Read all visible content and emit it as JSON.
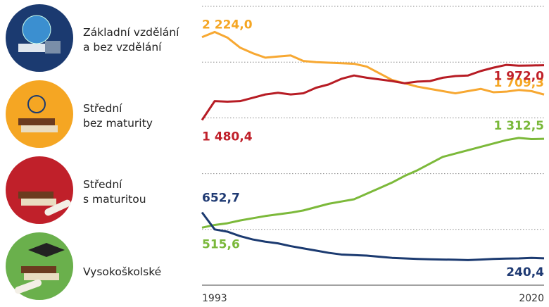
{
  "chart_data": {
    "type": "line",
    "x": [
      1993,
      1994,
      1995,
      1996,
      1997,
      1998,
      1999,
      2000,
      2001,
      2002,
      2003,
      2004,
      2005,
      2006,
      2007,
      2008,
      2009,
      2010,
      2011,
      2012,
      2013,
      2014,
      2015,
      2016,
      2017,
      2018,
      2019,
      2020
    ],
    "xlim": [
      1993,
      2020
    ],
    "xticks": [
      1993,
      2020
    ],
    "ylim": [
      0,
      2500
    ],
    "yticks": [
      0,
      500,
      1000,
      1500,
      2000,
      2500
    ],
    "grid": true,
    "series": [
      {
        "name": "Základní vzdělání\na bez vzdělání",
        "color": "#f7a832",
        "values": [
          2224.0,
          2270,
          2220,
          2130,
          2080,
          2040,
          2050,
          2060,
          2010,
          2000,
          1995,
          1990,
          1985,
          1960,
          1900,
          1840,
          1810,
          1780,
          1760,
          1740,
          1720,
          1740,
          1760,
          1730,
          1735,
          1750,
          1740,
          1709.3
        ],
        "value_labels": [
          "2 224,0",
          null,
          null,
          null,
          null,
          null,
          null,
          null,
          null,
          null,
          null,
          null,
          null,
          null,
          null,
          null,
          null,
          null,
          null,
          null,
          null,
          null,
          null,
          null,
          null,
          null,
          null,
          "1 709,3"
        ]
      },
      {
        "name": "Střední\nbez maturity",
        "color": "#b71c24",
        "values": [
          1480.4,
          1650,
          1645,
          1650,
          1680,
          1710,
          1725,
          1710,
          1720,
          1770,
          1800,
          1850,
          1880,
          1860,
          1845,
          1830,
          1810,
          1825,
          1830,
          1860,
          1875,
          1880,
          1920,
          1950,
          1975,
          1968,
          1970,
          1972.0
        ],
        "value_labels": [
          "1 480,4",
          null,
          null,
          null,
          null,
          null,
          null,
          null,
          null,
          null,
          null,
          null,
          null,
          null,
          null,
          null,
          null,
          null,
          null,
          null,
          null,
          null,
          null,
          null,
          null,
          null,
          null,
          "1 972,0"
        ]
      },
      {
        "name": "Střední\ns maturitou",
        "color": "#7cb93a",
        "values": [
          515.6,
          540,
          555,
          580,
          600,
          620,
          635,
          650,
          670,
          700,
          730,
          750,
          770,
          820,
          870,
          920,
          980,
          1030,
          1090,
          1150,
          1180,
          1210,
          1240,
          1270,
          1300,
          1320,
          1310,
          1312.5
        ],
        "value_labels": [
          "515,6",
          null,
          null,
          null,
          null,
          null,
          null,
          null,
          null,
          null,
          null,
          null,
          null,
          null,
          null,
          null,
          null,
          null,
          null,
          null,
          null,
          null,
          null,
          null,
          null,
          null,
          null,
          "1 312,5"
        ]
      },
      {
        "name": "Vysokoškolské",
        "color": "#1b3a70",
        "values": [
          652.7,
          500,
          480,
          440,
          410,
          390,
          375,
          350,
          330,
          310,
          290,
          275,
          270,
          265,
          255,
          245,
          240,
          235,
          232,
          230,
          228,
          225,
          230,
          235,
          238,
          240,
          245,
          240.4
        ],
        "value_labels": [
          "652,7",
          null,
          null,
          null,
          null,
          null,
          null,
          null,
          null,
          null,
          null,
          null,
          null,
          null,
          null,
          null,
          null,
          null,
          null,
          null,
          null,
          null,
          null,
          null,
          null,
          null,
          null,
          "240,4"
        ]
      }
    ]
  }
}
